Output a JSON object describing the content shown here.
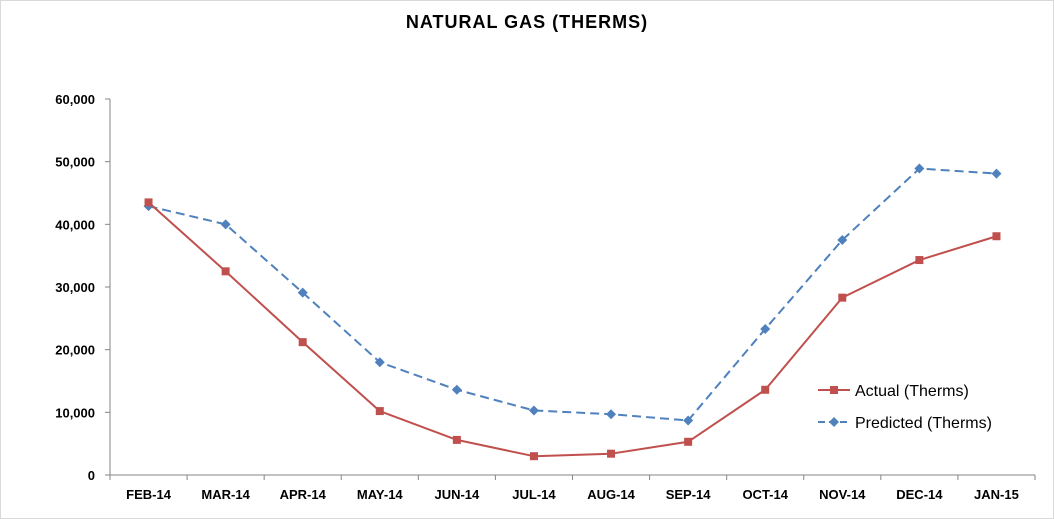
{
  "chart_data": {
    "type": "line",
    "title": "NATURAL GAS (THERMS)",
    "xlabel": "",
    "ylabel": "",
    "categories": [
      "FEB-14",
      "MAR-14",
      "APR-14",
      "MAY-14",
      "JUN-14",
      "JUL-14",
      "AUG-14",
      "SEP-14",
      "OCT-14",
      "NOV-14",
      "DEC-14",
      "JAN-15"
    ],
    "ylim": [
      0,
      60000
    ],
    "yticks": [
      {
        "value": 0,
        "label": "0"
      },
      {
        "value": 10000,
        "label": "10,000"
      },
      {
        "value": 20000,
        "label": "20,000"
      },
      {
        "value": 30000,
        "label": "30,000"
      },
      {
        "value": 40000,
        "label": "40,000"
      },
      {
        "value": 50000,
        "label": "50,000"
      },
      {
        "value": 60000,
        "label": "60,000"
      }
    ],
    "grid": false,
    "legend_position": "right",
    "series": [
      {
        "name": "Actual (Therms)",
        "color": "#c0504d",
        "marker": "square",
        "line_style": "solid",
        "values": [
          43500,
          32500,
          21200,
          10200,
          5600,
          3000,
          3400,
          5300,
          13600,
          28300,
          34300,
          38100
        ]
      },
      {
        "name": "Predicted (Therms)",
        "color": "#4f81bd",
        "marker": "diamond",
        "line_style": "dashed",
        "values": [
          42900,
          40000,
          29100,
          18000,
          13600,
          10300,
          9700,
          8700,
          23300,
          37500,
          48900,
          48100
        ]
      }
    ]
  }
}
